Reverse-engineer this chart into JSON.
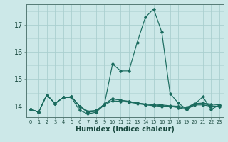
{
  "title": "",
  "xlabel": "Humidex (Indice chaleur)",
  "background_color": "#cce8e8",
  "grid_color": "#aacfcf",
  "line_color": "#1a6b5e",
  "x_values": [
    0,
    1,
    2,
    3,
    4,
    5,
    6,
    7,
    8,
    9,
    10,
    11,
    12,
    13,
    14,
    15,
    16,
    17,
    18,
    19,
    20,
    21,
    22,
    23
  ],
  "series": [
    [
      13.9,
      13.78,
      14.42,
      14.1,
      14.32,
      14.32,
      13.85,
      13.72,
      13.78,
      14.05,
      15.55,
      15.3,
      15.3,
      16.35,
      17.27,
      17.58,
      16.72,
      14.47,
      14.12,
      13.9,
      14.08,
      14.35,
      13.88,
      14.05
    ],
    [
      13.9,
      13.78,
      14.42,
      14.1,
      14.32,
      14.35,
      14.0,
      13.78,
      13.82,
      14.08,
      14.28,
      14.22,
      14.18,
      14.12,
      14.08,
      14.08,
      14.05,
      14.02,
      14.0,
      13.96,
      14.1,
      14.12,
      14.08,
      14.05
    ],
    [
      13.9,
      13.78,
      14.42,
      14.1,
      14.32,
      14.35,
      14.0,
      13.78,
      13.82,
      14.08,
      14.28,
      14.22,
      14.18,
      14.12,
      14.08,
      14.05,
      14.02,
      14.0,
      13.98,
      13.92,
      14.1,
      14.1,
      14.02,
      14.0
    ],
    [
      13.9,
      13.78,
      14.42,
      14.1,
      14.32,
      14.35,
      14.0,
      13.82,
      13.85,
      14.05,
      14.2,
      14.18,
      14.15,
      14.1,
      14.05,
      14.02,
      14.0,
      14.0,
      13.95,
      13.88,
      14.05,
      14.05,
      14.0,
      14.0
    ]
  ],
  "ylim": [
    13.6,
    17.75
  ],
  "yticks": [
    14,
    15,
    16,
    17
  ],
  "xlim": [
    -0.5,
    23.5
  ],
  "xtick_labels": [
    "0",
    "1",
    "2",
    "3",
    "4",
    "5",
    "6",
    "7",
    "8",
    "9",
    "10",
    "11",
    "12",
    "13",
    "14",
    "15",
    "16",
    "17",
    "18",
    "19",
    "20",
    "21",
    "22",
    "23"
  ]
}
